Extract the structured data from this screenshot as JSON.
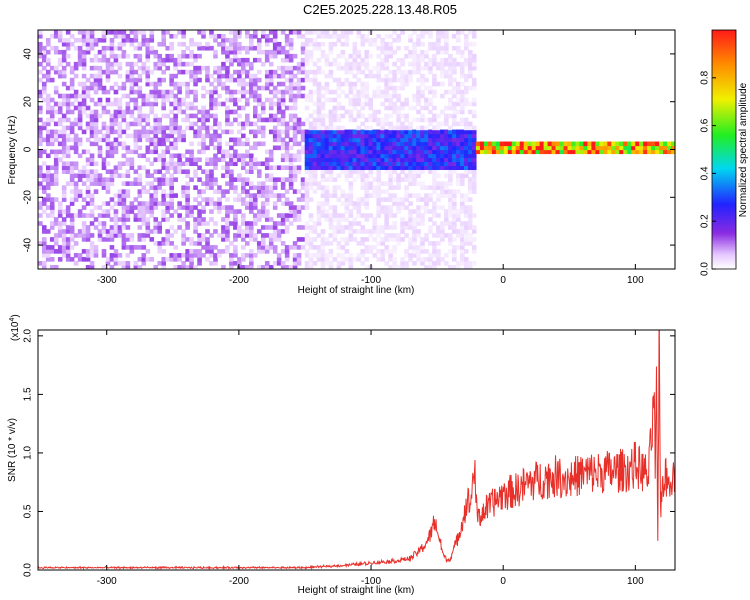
{
  "title": "C2E5.2025.228.13.48.R05",
  "colors": {
    "snr_line": "#e8302a",
    "axis": "#000000",
    "background": "#ffffff"
  },
  "chart_data": [
    {
      "type": "heatmap",
      "xlabel": "Height of straight line (km)",
      "ylabel": "Frequency (Hz)",
      "xlim": [
        -352,
        130
      ],
      "ylim": [
        -50,
        50
      ],
      "x_ticks": [
        -300,
        -200,
        -100,
        0,
        100
      ],
      "y_ticks": [
        -40,
        -20,
        0,
        20,
        40
      ],
      "colormap": "rainbow (white → violet → blue → cyan → green → yellow → red)",
      "colorbar": {
        "label": "Normalized spectral amplitude",
        "range": [
          0,
          1
        ],
        "ticks": [
          0.0,
          0.2,
          0.4,
          0.6,
          0.8
        ]
      },
      "features": [
        {
          "name": "noise",
          "x_range": [
            -352,
            -150
          ],
          "freq_range": [
            -50,
            50
          ],
          "amplitude": 0.08
        },
        {
          "name": "noise",
          "x_range": [
            -150,
            -20
          ],
          "freq_range": [
            -50,
            50
          ],
          "amplitude": 0.03
        },
        {
          "name": "band",
          "x_range": [
            -150,
            -20
          ],
          "freq_range": [
            -8,
            8
          ],
          "amplitude": 0.3
        },
        {
          "name": "band",
          "x_range": [
            -20,
            130
          ],
          "freq_range": [
            -1,
            4
          ],
          "amplitude": 0.95
        }
      ]
    },
    {
      "type": "line",
      "xlabel": "Height of straight line (km)",
      "ylabel": "SNR (10 * v/v)",
      "y_scale_label": "(x10",
      "y_scale_exp": "4",
      "y_scale_close": ")",
      "xlim": [
        -352,
        130
      ],
      "ylim": [
        0,
        2.05
      ],
      "x_ticks": [
        -300,
        -200,
        -100,
        0,
        100
      ],
      "y_ticks": [
        0.0,
        0.5,
        1.0,
        1.5,
        2.0
      ],
      "series": [
        {
          "x": [
            -352,
            -300,
            -250,
            -200,
            -150,
            -120,
            -100,
            -80,
            -70,
            -60,
            -55,
            -52,
            -50,
            -48,
            -45,
            -42,
            -40,
            -35,
            -30,
            -27,
            -25,
            -23,
            -22,
            -21,
            -20,
            -18,
            -15,
            -10,
            -5,
            0,
            10,
            20,
            30,
            40,
            50,
            60,
            70,
            80,
            90,
            95,
            100,
            105,
            108,
            110,
            112,
            114,
            115,
            116,
            117,
            118,
            119,
            120,
            122,
            125,
            128,
            130
          ],
          "values": [
            0.02,
            0.02,
            0.02,
            0.02,
            0.02,
            0.04,
            0.06,
            0.08,
            0.1,
            0.2,
            0.3,
            0.42,
            0.35,
            0.25,
            0.12,
            0.08,
            0.1,
            0.25,
            0.45,
            0.6,
            0.55,
            0.75,
            0.92,
            0.7,
            0.5,
            0.45,
            0.5,
            0.55,
            0.6,
            0.65,
            0.68,
            0.75,
            0.78,
            0.8,
            0.78,
            0.82,
            0.83,
            0.84,
            0.85,
            0.86,
            0.9,
            0.85,
            0.82,
            0.8,
            1.1,
            1.45,
            0.9,
            1.5,
            0.2,
            2.05,
            0.5,
            0.7,
            0.8,
            0.75,
            0.82,
            0.85
          ]
        }
      ]
    }
  ]
}
